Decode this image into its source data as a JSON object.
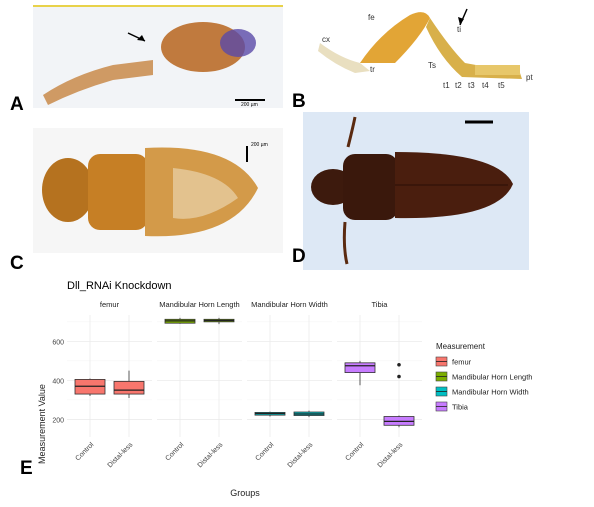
{
  "panels": {
    "a": {
      "label": "A",
      "scale_bar": "200 µm"
    },
    "b": {
      "label": "B",
      "annotations": [
        "cx",
        "fe",
        "ti",
        "tr",
        "Ts",
        "t1",
        "t2",
        "t3",
        "t4",
        "t5",
        "pt"
      ]
    },
    "c": {
      "label": "C",
      "scale_bar": "200 µm"
    },
    "d": {
      "label": "D"
    },
    "e": {
      "label": "E"
    }
  },
  "chart_data": {
    "type": "box",
    "title": "Dll_RNAi Knockdown",
    "xlabel": "Groups",
    "ylabel": "Measurement Value",
    "ylim": [
      110,
      735
    ],
    "yticks": [
      200,
      400,
      600
    ],
    "grid": true,
    "facets": [
      "femur",
      "Mandibular Horn Length",
      "Mandibular Horn Width",
      "Tibia"
    ],
    "categories": [
      "Control",
      "Distal-less"
    ],
    "legend": {
      "title": "Measurement",
      "placement": "right",
      "entries": [
        {
          "name": "femur",
          "color": "#F8766D"
        },
        {
          "name": "Mandibular Horn Length",
          "color": "#7CAE00"
        },
        {
          "name": "Mandibular Horn Width",
          "color": "#00BFC4"
        },
        {
          "name": "Tibia",
          "color": "#C77CFF"
        }
      ]
    },
    "series": [
      {
        "facet": "femur",
        "group": "Control",
        "min": 320,
        "q1": 330,
        "median": 370,
        "q3": 405,
        "max": 410,
        "outliers": []
      },
      {
        "facet": "femur",
        "group": "Distal-less",
        "min": 310,
        "q1": 330,
        "median": 350,
        "q3": 395,
        "max": 450,
        "outliers": []
      },
      {
        "facet": "Mandibular Horn Length",
        "group": "Control",
        "min": 690,
        "q1": 693,
        "median": 705,
        "q3": 713,
        "max": 720,
        "outliers": []
      },
      {
        "facet": "Mandibular Horn Length",
        "group": "Distal-less",
        "min": 688,
        "q1": 700,
        "median": 707,
        "q3": 713,
        "max": 720,
        "outliers": []
      },
      {
        "facet": "Mandibular Horn Width",
        "group": "Control",
        "min": 215,
        "q1": 222,
        "median": 230,
        "q3": 236,
        "max": 240,
        "outliers": []
      },
      {
        "facet": "Mandibular Horn Width",
        "group": "Distal-less",
        "min": 212,
        "q1": 220,
        "median": 228,
        "q3": 238,
        "max": 245,
        "outliers": []
      },
      {
        "facet": "Tibia",
        "group": "Control",
        "min": 375,
        "q1": 440,
        "median": 475,
        "q3": 490,
        "max": 500,
        "outliers": []
      },
      {
        "facet": "Tibia",
        "group": "Distal-less",
        "min": 160,
        "q1": 170,
        "median": 190,
        "q3": 215,
        "max": 220,
        "outliers": [
          420,
          480
        ]
      }
    ]
  }
}
